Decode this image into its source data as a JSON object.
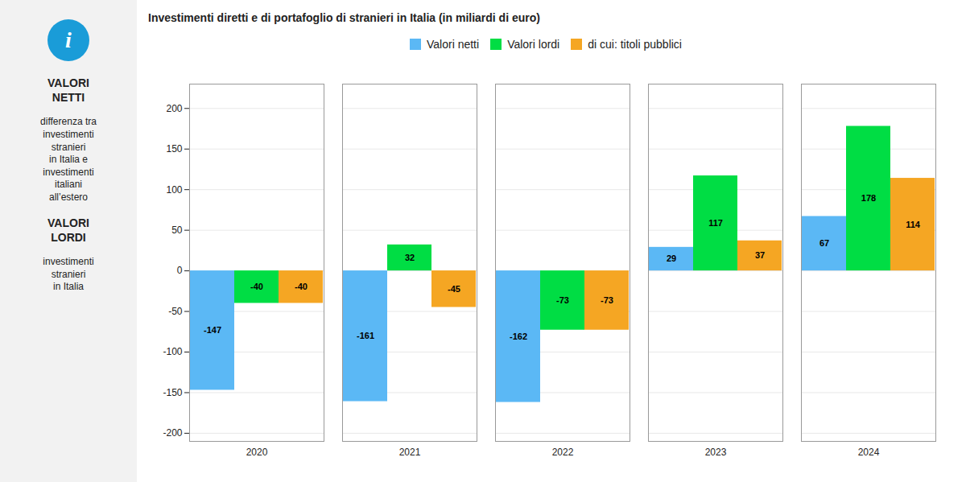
{
  "chart_data": {
    "type": "bar",
    "subtitle": "Investimenti diretti e di portafoglio di stranieri in Italia (in miliardi di euro)",
    "categories": [
      "2020",
      "2021",
      "2022",
      "2023",
      "2024"
    ],
    "series": [
      {
        "name": "Valori netti",
        "color": "#5bb8f5",
        "values": [
          -147,
          -161,
          -162,
          29,
          67
        ]
      },
      {
        "name": "Valori lordi",
        "color": "#00dd44",
        "values": [
          -40,
          32,
          -73,
          117,
          178
        ]
      },
      {
        "name": "di cui: titoli pubblici",
        "color": "#f5a623",
        "values": [
          -40,
          -45,
          -73,
          37,
          114
        ]
      }
    ],
    "ylim": [
      -210,
      230
    ],
    "yticks": [
      -200,
      -150,
      -100,
      -50,
      0,
      50,
      100,
      150,
      200
    ],
    "grid": true,
    "data_labels": true,
    "legend": "top",
    "annotations": [
      "i",
      "VALORI\nNETTI",
      "differenza tra\ninvestimenti\nstranieri\nin Italia e\ninvestimenti\nitaliani\nall’estero",
      "VALORI\nLORDI",
      "investimenti\nstranieri\nin Italia"
    ]
  }
}
